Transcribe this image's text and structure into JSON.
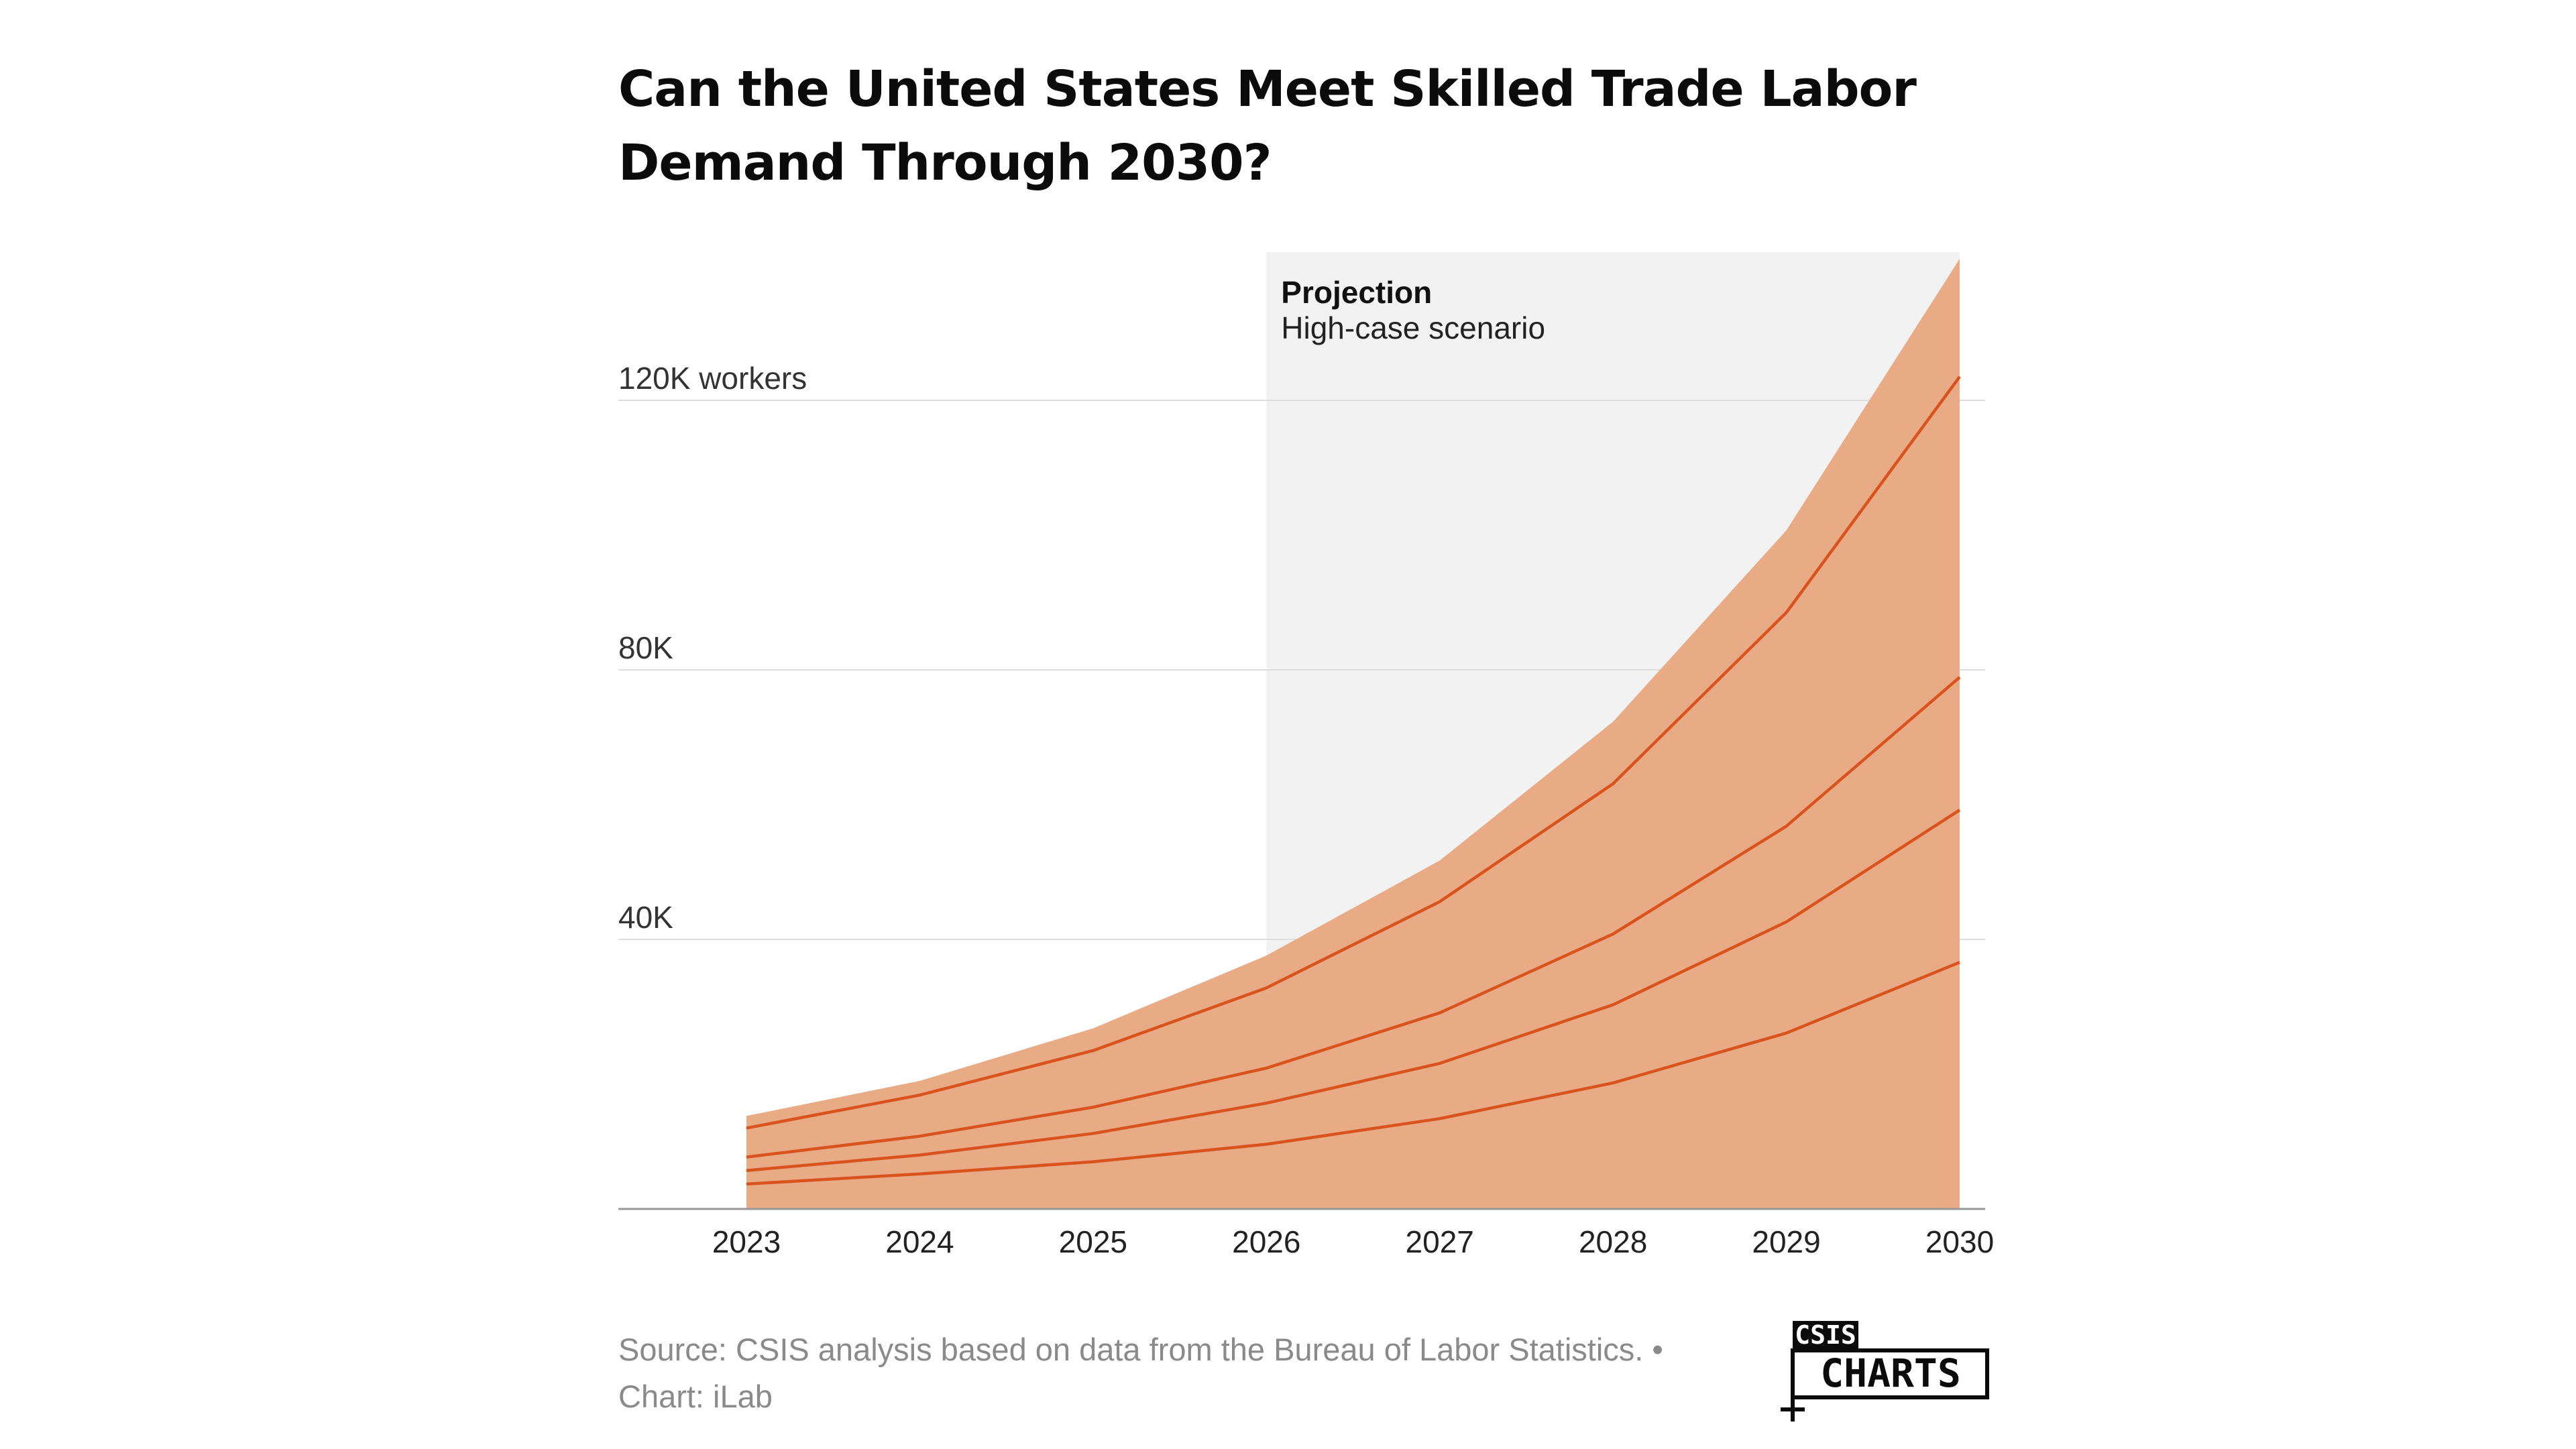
{
  "title_line1": "Can the United States Meet Skilled Trade Labor",
  "title_line2": "Demand Through 2030?",
  "footer": {
    "source": "Source: CSIS analysis based on data from the Bureau of Labor Statistics. •",
    "credit": "Chart: iLab"
  },
  "logo": {
    "top_text": "CSIS",
    "bottom_text": "CHARTS"
  },
  "colors": {
    "area_fill": "#e8a67f",
    "line": "#d9531e",
    "projection_bg": "#f2f2f2",
    "grid": "#dddddd",
    "axis": "#999999",
    "text": "#222222",
    "muted": "#8a8a8a"
  },
  "chart_data": {
    "type": "area",
    "x": [
      2023,
      2024,
      2025,
      2026,
      2027,
      2028,
      2029,
      2030
    ],
    "x_tick_labels": [
      "2023",
      "2024",
      "2025",
      "2026",
      "2027",
      "2028",
      "2029",
      "2030"
    ],
    "y_ticks": [
      40000,
      80000,
      120000
    ],
    "y_tick_labels": [
      "40K",
      "80K",
      "120K workers"
    ],
    "ylim": [
      0,
      142000
    ],
    "grid": true,
    "projection": {
      "from": 2026,
      "to": 2030,
      "label": "Projection",
      "sublabel": "High-case scenario"
    },
    "upper_bound": [
      13800,
      19000,
      26800,
      37600,
      51700,
      72300,
      100700,
      141000
    ],
    "series": [
      {
        "values": [
          12000,
          16900,
          23500,
          32800,
          45600,
          63100,
          88500,
          123500
        ]
      },
      {
        "values": [
          7700,
          10800,
          15100,
          20900,
          29100,
          40800,
          56800,
          78900
        ]
      },
      {
        "values": [
          5700,
          8000,
          11200,
          15700,
          21600,
          30300,
          42600,
          59200
        ]
      },
      {
        "values": [
          3700,
          5200,
          7000,
          9600,
          13400,
          18700,
          26100,
          36600
        ]
      }
    ]
  }
}
